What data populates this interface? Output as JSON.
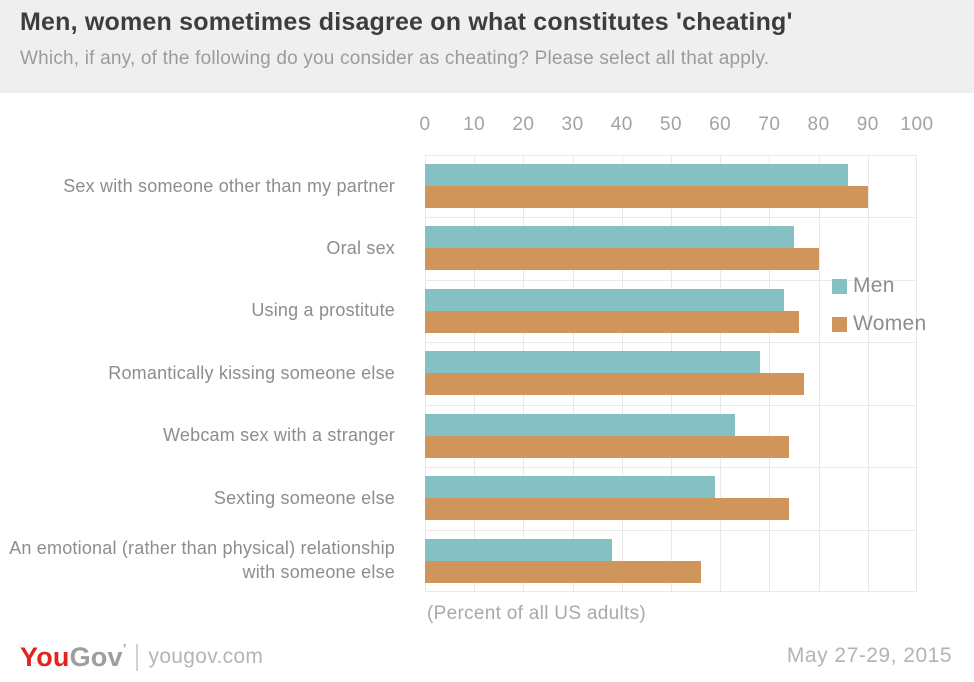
{
  "header": {
    "title": "Men, women sometimes disagree on what constitutes 'cheating'",
    "subtitle": "Which, if any, of the following do you consider as cheating? Please select all that apply."
  },
  "chart_data": {
    "type": "bar",
    "orientation": "horizontal",
    "title": "Men, women sometimes disagree on what constitutes 'cheating'",
    "subtitle": "Which, if any, of the following do you consider as cheating? Please select all that apply.",
    "categories": [
      "Sex with someone other than my partner",
      "Oral sex",
      "Using a prostitute",
      "Romantically kissing someone else",
      "Webcam sex with a stranger",
      "Sexting someone else",
      "An emotional (rather than physical) relationship with someone else"
    ],
    "series": [
      {
        "name": "Men",
        "color": "#85c0c2",
        "values": [
          86,
          75,
          73,
          68,
          63,
          59,
          38
        ]
      },
      {
        "name": "Women",
        "color": "#d0955a",
        "values": [
          90,
          80,
          76,
          77,
          74,
          74,
          56
        ]
      }
    ],
    "xlim": [
      0,
      100
    ],
    "xticks": [
      0,
      10,
      20,
      30,
      40,
      50,
      60,
      70,
      80,
      90,
      100
    ],
    "grid": true,
    "legend_position": "right-inside",
    "caption": "(Percent of all US adults)",
    "unit": "percent"
  },
  "footer": {
    "logo_you": "You",
    "logo_gov": "Gov",
    "logo_mark": "’",
    "site": "yougov.com",
    "date": "May 27-29, 2015"
  },
  "colors": {
    "header_bg": "#efefef",
    "title": "#3d3d3d",
    "subtitle": "#9b9b9b",
    "gridline": "#e9e9e9",
    "label": "#8d8d8d",
    "tick": "#a3a3a3",
    "men": "#85c0c2",
    "women": "#d0955a",
    "logo_red": "#e3231e"
  }
}
